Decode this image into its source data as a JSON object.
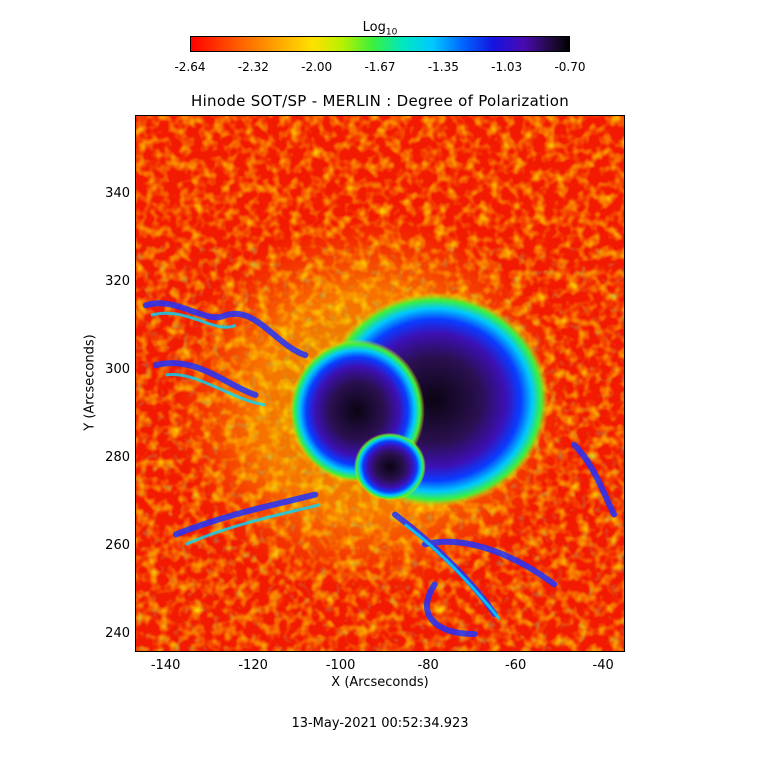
{
  "colorbar": {
    "title": "Log",
    "title_sub": "10",
    "ticks": [
      "-2.64",
      "-2.32",
      "-2.00",
      "-1.67",
      "-1.35",
      "-1.03",
      "-0.70"
    ],
    "range": [
      -2.64,
      -0.7
    ]
  },
  "chart_data": {
    "type": "heatmap",
    "title": "Hinode SOT/SP - MERLIN : Degree of Polarization",
    "xlabel": "X (Arcseconds)",
    "ylabel": "Y (Arcseconds)",
    "xlim": [
      -147,
      -35
    ],
    "ylim": [
      236,
      358
    ],
    "xticks": [
      "-140",
      "-120",
      "-100",
      "-80",
      "-60",
      "-40"
    ],
    "yticks": [
      "240",
      "260",
      "280",
      "300",
      "320",
      "340"
    ],
    "colorscale": [
      "#ff0000",
      "#ff9f00",
      "#ffe000",
      "#3cf03c",
      "#00c8ff",
      "#1414e0",
      "#230a46",
      "#000000"
    ],
    "features": [
      {
        "kind": "sunspot-umbra",
        "x": -83,
        "y": 294,
        "value": -0.8
      },
      {
        "kind": "sunspot-umbra",
        "x": -98,
        "y": 292,
        "value": -0.9
      },
      {
        "kind": "sunspot-umbra",
        "x": -87,
        "y": 281,
        "value": -1.0
      }
    ]
  },
  "timestamp": "13-May-2021 00:52:34.923"
}
